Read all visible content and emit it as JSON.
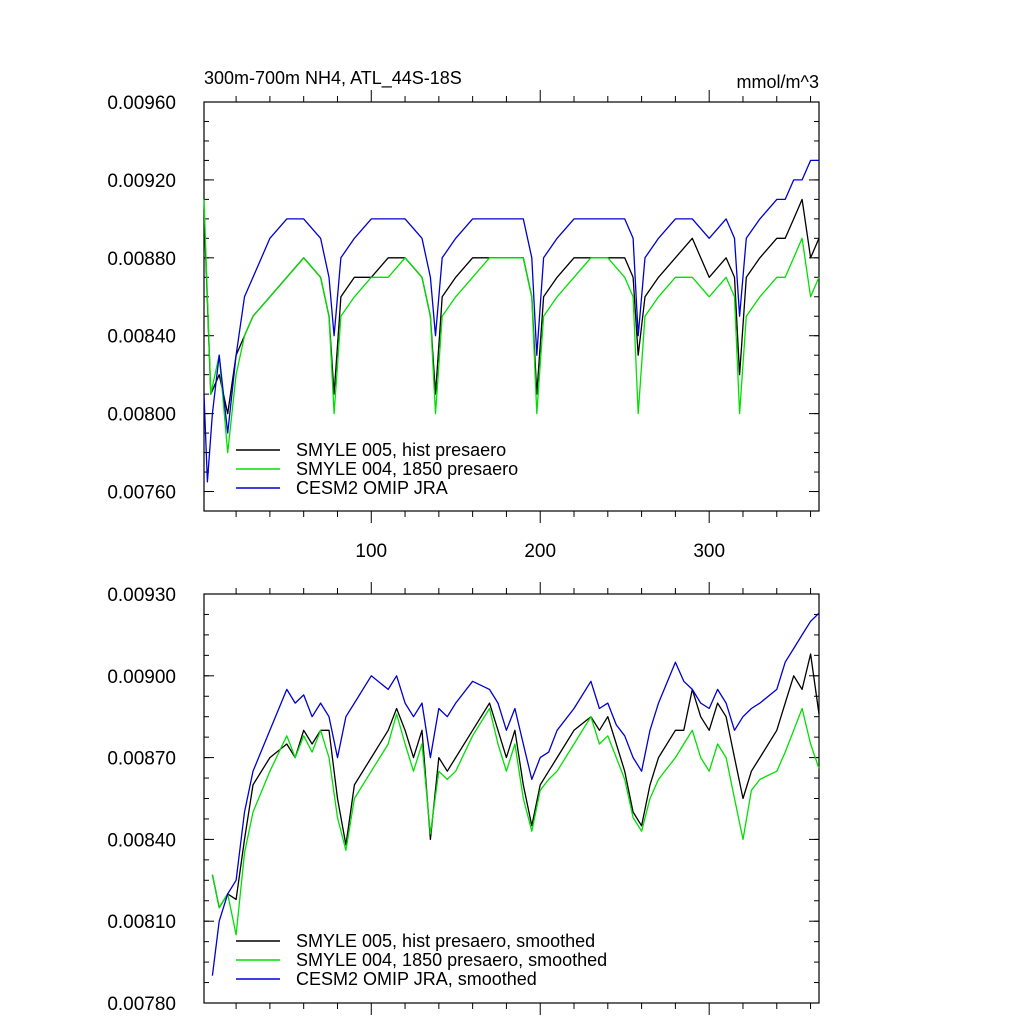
{
  "colors": {
    "SMYLE 005": "#000000",
    "SMYLE 004": "#00e000",
    "CESM2 OMIP JRA": "#0000d0"
  },
  "chart_data": [
    {
      "type": "line",
      "title": "300m-700m NH4, ATL_44S-18S",
      "units": "mmol/m^3",
      "xlabel": "",
      "ylabel": "",
      "xlim": [
        1,
        365
      ],
      "ylim": [
        0.0075,
        0.0096
      ],
      "x_ticks": [
        100,
        200,
        300
      ],
      "x_tick_labels": [
        "100",
        "200",
        "300"
      ],
      "y_ticks": [
        0.0076,
        0.008,
        0.0084,
        0.0088,
        0.0092,
        0.0096
      ],
      "y_tick_labels": [
        "0.00760",
        "0.00800",
        "0.00840",
        "0.00880",
        "0.00920",
        "0.00960"
      ],
      "grid": false,
      "legend_position": "bottom-left",
      "series": [
        {
          "name": "SMYLE 005, hist presaero",
          "color_key": "SMYLE 005",
          "x": [
            1,
            5,
            10,
            15,
            20,
            25,
            30,
            40,
            50,
            60,
            70,
            75,
            78,
            82,
            90,
            100,
            110,
            120,
            130,
            135,
            138,
            142,
            150,
            160,
            170,
            180,
            190,
            195,
            198,
            202,
            210,
            220,
            230,
            240,
            250,
            255,
            258,
            262,
            270,
            280,
            290,
            300,
            310,
            315,
            318,
            322,
            330,
            340,
            345,
            350,
            355,
            360,
            365
          ],
          "y": [
            0.00905,
            0.0081,
            0.0082,
            0.008,
            0.0083,
            0.0084,
            0.0085,
            0.0086,
            0.0087,
            0.0088,
            0.0087,
            0.0085,
            0.0081,
            0.0086,
            0.0087,
            0.0087,
            0.0088,
            0.0088,
            0.0087,
            0.0085,
            0.0081,
            0.0086,
            0.0087,
            0.0088,
            0.0088,
            0.0088,
            0.0088,
            0.0086,
            0.0081,
            0.0086,
            0.0087,
            0.0088,
            0.0088,
            0.0088,
            0.0088,
            0.0087,
            0.0083,
            0.0086,
            0.0087,
            0.0088,
            0.0089,
            0.0087,
            0.0088,
            0.0087,
            0.0082,
            0.0087,
            0.0088,
            0.0089,
            0.0089,
            0.009,
            0.0091,
            0.0088,
            0.0089
          ]
        },
        {
          "name": "SMYLE 004, 1850 presaero",
          "color_key": "SMYLE 004",
          "x": [
            1,
            5,
            10,
            15,
            20,
            25,
            30,
            40,
            50,
            60,
            70,
            75,
            78,
            82,
            90,
            100,
            110,
            120,
            130,
            135,
            138,
            142,
            150,
            160,
            170,
            180,
            190,
            195,
            198,
            202,
            210,
            220,
            230,
            240,
            250,
            255,
            258,
            262,
            270,
            280,
            290,
            300,
            310,
            315,
            318,
            322,
            330,
            340,
            345,
            350,
            355,
            360,
            365
          ],
          "y": [
            0.0091,
            0.0081,
            0.0083,
            0.0078,
            0.0082,
            0.0084,
            0.0085,
            0.0086,
            0.0087,
            0.0088,
            0.0087,
            0.0085,
            0.008,
            0.0085,
            0.0086,
            0.0087,
            0.0087,
            0.0088,
            0.0087,
            0.0085,
            0.008,
            0.0085,
            0.0086,
            0.0087,
            0.0088,
            0.0088,
            0.0088,
            0.0086,
            0.008,
            0.0085,
            0.0086,
            0.0087,
            0.0088,
            0.0088,
            0.0087,
            0.0086,
            0.008,
            0.0085,
            0.0086,
            0.0087,
            0.0087,
            0.0086,
            0.0087,
            0.0086,
            0.008,
            0.0085,
            0.0086,
            0.0087,
            0.0087,
            0.0088,
            0.0089,
            0.0086,
            0.0087
          ]
        },
        {
          "name": "CESM2 OMIP JRA",
          "color_key": "CESM2 OMIP JRA",
          "x": [
            1,
            3,
            6,
            10,
            15,
            20,
            25,
            30,
            40,
            50,
            60,
            70,
            75,
            78,
            82,
            90,
            100,
            110,
            120,
            130,
            135,
            138,
            142,
            150,
            160,
            170,
            180,
            190,
            195,
            198,
            202,
            210,
            220,
            230,
            240,
            250,
            255,
            258,
            262,
            270,
            280,
            290,
            300,
            310,
            315,
            318,
            322,
            330,
            340,
            345,
            350,
            355,
            360,
            365
          ],
          "y": [
            0.0081,
            0.00765,
            0.008,
            0.0083,
            0.0079,
            0.0083,
            0.0086,
            0.0087,
            0.0089,
            0.009,
            0.009,
            0.0089,
            0.0087,
            0.0084,
            0.0088,
            0.0089,
            0.009,
            0.009,
            0.009,
            0.0089,
            0.0087,
            0.0084,
            0.0088,
            0.0089,
            0.009,
            0.009,
            0.009,
            0.009,
            0.0088,
            0.0083,
            0.0088,
            0.0089,
            0.009,
            0.009,
            0.009,
            0.009,
            0.0089,
            0.0084,
            0.0088,
            0.0089,
            0.009,
            0.009,
            0.0089,
            0.009,
            0.0089,
            0.0085,
            0.0089,
            0.009,
            0.0091,
            0.0091,
            0.0092,
            0.0092,
            0.0093,
            0.0093
          ]
        }
      ]
    },
    {
      "type": "line",
      "title": "",
      "units": "",
      "xlabel": "",
      "ylabel": "",
      "xlim": [
        1,
        365
      ],
      "ylim": [
        0.0078,
        0.0093
      ],
      "x_ticks": [
        100,
        200,
        300
      ],
      "x_tick_labels": [],
      "y_ticks": [
        0.0078,
        0.0081,
        0.0084,
        0.0087,
        0.009,
        0.0093
      ],
      "y_tick_labels": [
        "0.00780",
        "0.00810",
        "0.00840",
        "0.00870",
        "0.00900",
        "0.00930"
      ],
      "grid": false,
      "legend_position": "bottom-left",
      "series": [
        {
          "name": "SMYLE 005, hist presaero, smoothed",
          "color_key": "SMYLE 005",
          "x": [
            6,
            10,
            15,
            20,
            25,
            30,
            40,
            50,
            55,
            60,
            65,
            70,
            75,
            80,
            85,
            90,
            100,
            110,
            115,
            120,
            125,
            130,
            135,
            140,
            145,
            150,
            160,
            170,
            175,
            180,
            185,
            190,
            195,
            200,
            205,
            210,
            220,
            230,
            235,
            240,
            245,
            250,
            255,
            260,
            265,
            270,
            280,
            285,
            290,
            295,
            300,
            305,
            310,
            315,
            320,
            325,
            330,
            340,
            345,
            350,
            355,
            360,
            365
          ],
          "y": [
            0.00827,
            0.00815,
            0.0082,
            0.00818,
            0.0084,
            0.0086,
            0.0087,
            0.00875,
            0.0087,
            0.0088,
            0.00875,
            0.0088,
            0.0088,
            0.00855,
            0.00838,
            0.0086,
            0.0087,
            0.0088,
            0.00888,
            0.0088,
            0.0087,
            0.0088,
            0.0084,
            0.0087,
            0.00865,
            0.0087,
            0.0088,
            0.0089,
            0.0088,
            0.0087,
            0.0088,
            0.0086,
            0.00845,
            0.0086,
            0.00865,
            0.0087,
            0.0088,
            0.00885,
            0.0088,
            0.00885,
            0.00875,
            0.00865,
            0.0085,
            0.00845,
            0.0086,
            0.0087,
            0.0088,
            0.0088,
            0.00895,
            0.00885,
            0.0088,
            0.0089,
            0.00885,
            0.0087,
            0.00855,
            0.00865,
            0.0087,
            0.0088,
            0.0089,
            0.009,
            0.00895,
            0.00908,
            0.00886
          ]
        },
        {
          "name": "SMYLE 004, 1850 presaero, smoothed",
          "color_key": "SMYLE 004",
          "x": [
            6,
            10,
            15,
            20,
            25,
            30,
            40,
            50,
            55,
            60,
            65,
            70,
            75,
            80,
            85,
            90,
            100,
            110,
            115,
            120,
            125,
            130,
            135,
            140,
            145,
            150,
            160,
            170,
            175,
            180,
            185,
            190,
            195,
            200,
            205,
            210,
            220,
            230,
            235,
            240,
            245,
            250,
            255,
            260,
            265,
            270,
            280,
            285,
            290,
            295,
            300,
            305,
            310,
            315,
            320,
            325,
            330,
            340,
            345,
            350,
            355,
            360,
            365
          ],
          "y": [
            0.00827,
            0.00815,
            0.0082,
            0.00805,
            0.00835,
            0.0085,
            0.00865,
            0.00878,
            0.0087,
            0.00878,
            0.00872,
            0.0088,
            0.0087,
            0.00848,
            0.00836,
            0.00855,
            0.00865,
            0.00875,
            0.00886,
            0.00875,
            0.00865,
            0.00875,
            0.00842,
            0.00865,
            0.00862,
            0.00865,
            0.00878,
            0.00888,
            0.00875,
            0.00865,
            0.00875,
            0.00855,
            0.00843,
            0.00858,
            0.00862,
            0.00865,
            0.00875,
            0.00885,
            0.00875,
            0.00878,
            0.0087,
            0.00862,
            0.00848,
            0.00843,
            0.00855,
            0.00862,
            0.0087,
            0.00875,
            0.0088,
            0.0087,
            0.00865,
            0.00875,
            0.0087,
            0.00855,
            0.0084,
            0.00858,
            0.00862,
            0.00865,
            0.00872,
            0.0088,
            0.00888,
            0.00875,
            0.00866
          ]
        },
        {
          "name": "CESM2 OMIP JRA, smoothed",
          "color_key": "CESM2 OMIP JRA",
          "x": [
            6,
            10,
            15,
            20,
            25,
            30,
            40,
            50,
            55,
            60,
            65,
            70,
            75,
            80,
            85,
            90,
            100,
            110,
            115,
            120,
            125,
            130,
            135,
            140,
            145,
            150,
            160,
            170,
            175,
            180,
            185,
            190,
            195,
            200,
            205,
            210,
            220,
            230,
            235,
            240,
            245,
            250,
            255,
            260,
            265,
            270,
            280,
            285,
            290,
            295,
            300,
            305,
            310,
            315,
            320,
            325,
            330,
            340,
            345,
            350,
            355,
            360,
            365
          ],
          "y": [
            0.0079,
            0.0081,
            0.0082,
            0.00825,
            0.0085,
            0.00865,
            0.0088,
            0.00895,
            0.0089,
            0.00893,
            0.00885,
            0.0089,
            0.00885,
            0.0087,
            0.00885,
            0.0089,
            0.009,
            0.00895,
            0.009,
            0.0089,
            0.00885,
            0.0089,
            0.0087,
            0.00888,
            0.00885,
            0.0089,
            0.00898,
            0.00895,
            0.0089,
            0.0088,
            0.00888,
            0.00875,
            0.00862,
            0.0087,
            0.00872,
            0.0088,
            0.00888,
            0.00898,
            0.00888,
            0.0089,
            0.00882,
            0.00878,
            0.0087,
            0.00865,
            0.0088,
            0.0089,
            0.00905,
            0.00898,
            0.00895,
            0.0089,
            0.00888,
            0.00895,
            0.0089,
            0.0088,
            0.00885,
            0.00888,
            0.0089,
            0.00895,
            0.00905,
            0.0091,
            0.00915,
            0.0092,
            0.00923
          ]
        }
      ]
    }
  ]
}
